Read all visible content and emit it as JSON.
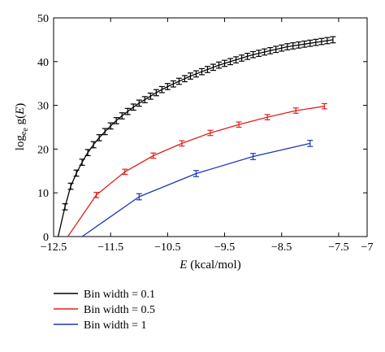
{
  "chart_data": {
    "type": "line",
    "xlabel": {
      "var": "E",
      "unit": " (kcal/mol)"
    },
    "ylabel": {
      "base": "log",
      "sub": "e",
      "sub2": "e",
      "tail": " g(",
      "var": "E",
      "close": ")"
    },
    "xlim": [
      -12.5,
      -7
    ],
    "ylim": [
      0,
      50
    ],
    "x_ticks": [
      -12.5,
      -11.5,
      -10.5,
      -9.5,
      -8.5,
      -7.5,
      -7
    ],
    "x_tick_labels": [
      "−12.5",
      "−11.5",
      "−10.5",
      "−9.5",
      "−8.5",
      "−7.5",
      "−7"
    ],
    "y_ticks": [
      0,
      10,
      20,
      30,
      40,
      50
    ],
    "y_tick_labels": [
      "0",
      "10",
      "20",
      "30",
      "40",
      "50"
    ],
    "grid": false,
    "legend_position": "below",
    "series": [
      {
        "name": "Bin width = 0.1",
        "color": "#000000",
        "curve_start": [
          -12.42,
          0
        ],
        "x": [
          -12.3,
          -12.2,
          -12.1,
          -12.0,
          -11.9,
          -11.8,
          -11.7,
          -11.6,
          -11.5,
          -11.4,
          -11.3,
          -11.2,
          -11.1,
          -11.0,
          -10.9,
          -10.8,
          -10.7,
          -10.6,
          -10.5,
          -10.4,
          -10.3,
          -10.2,
          -10.1,
          -10.0,
          -9.9,
          -9.8,
          -9.7,
          -9.6,
          -9.5,
          -9.4,
          -9.3,
          -9.2,
          -9.1,
          -9.0,
          -8.9,
          -8.8,
          -8.7,
          -8.6,
          -8.5,
          -8.4,
          -8.3,
          -8.2,
          -8.1,
          -8.0,
          -7.9,
          -7.8,
          -7.7,
          -7.6
        ],
        "y": [
          6.8,
          11.5,
          14.5,
          17.0,
          19.2,
          21.0,
          22.6,
          24.0,
          25.3,
          26.5,
          27.6,
          28.6,
          29.6,
          30.5,
          31.3,
          32.1,
          32.9,
          33.6,
          34.3,
          34.9,
          35.5,
          36.1,
          36.7,
          37.2,
          37.7,
          38.2,
          38.7,
          39.2,
          39.6,
          40.0,
          40.4,
          40.8,
          41.2,
          41.6,
          41.9,
          42.2,
          42.5,
          42.8,
          43.1,
          43.4,
          43.6,
          43.8,
          44.0,
          44.2,
          44.4,
          44.6,
          44.8,
          45.0
        ],
        "err": 0.7
      },
      {
        "name": "Bin width = 0.5",
        "color": "#e0201b",
        "curve_start": [
          -12.25,
          0
        ],
        "x": [
          -11.75,
          -11.25,
          -10.75,
          -10.25,
          -9.75,
          -9.25,
          -8.75,
          -8.25,
          -7.75
        ],
        "y": [
          9.5,
          14.8,
          18.5,
          21.3,
          23.7,
          25.6,
          27.3,
          28.8,
          29.8
        ],
        "err": 0.6
      },
      {
        "name": "Bin width = 1",
        "color": "#1f35b8",
        "curve_start": [
          -12.0,
          0
        ],
        "x": [
          -11.0,
          -10.0,
          -9.0,
          -8.0
        ],
        "y": [
          9.1,
          14.4,
          18.3,
          21.3
        ],
        "err": 0.7
      }
    ]
  }
}
